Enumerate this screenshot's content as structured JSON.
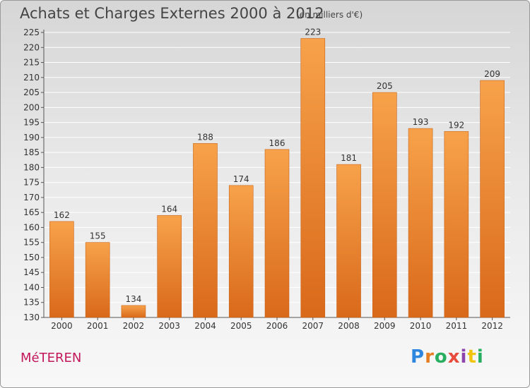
{
  "header": {
    "title": "Achats et Charges Externes 2000 à 2012",
    "subtitle": "(en milliers d'€)"
  },
  "footer": {
    "city": "MéTEREN",
    "logo_text": "Proxiti"
  },
  "colors": {
    "bar_top": "#f7a24a",
    "bar_bottom": "#d9691a",
    "grid": "#ffffff",
    "text": "#333333",
    "city": "#c2185b"
  },
  "chart_data": {
    "type": "bar",
    "categories": [
      "2000",
      "2001",
      "2002",
      "2003",
      "2004",
      "2005",
      "2006",
      "2007",
      "2008",
      "2009",
      "2010",
      "2011",
      "2012"
    ],
    "values": [
      162,
      155,
      134,
      164,
      188,
      174,
      186,
      223,
      181,
      205,
      193,
      192,
      209
    ],
    "ylim": [
      130,
      225
    ],
    "ytick_step": 5,
    "grid": true,
    "title": "Achats et Charges Externes 2000 à 2012",
    "xlabel": "",
    "ylabel": ""
  }
}
